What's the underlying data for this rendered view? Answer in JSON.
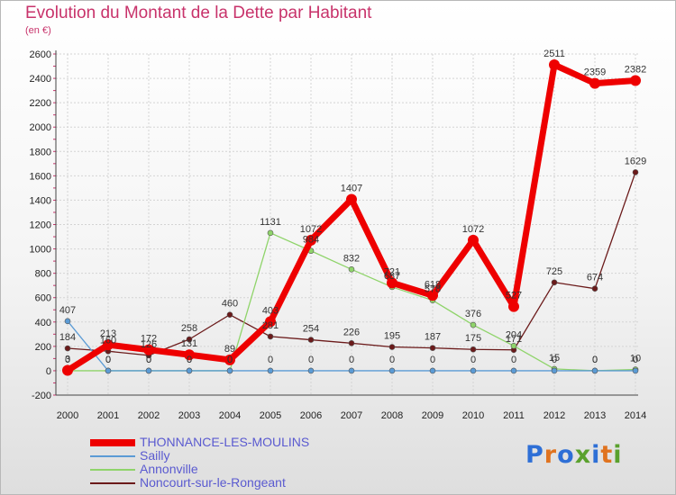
{
  "title": "Evolution du Montant de la Dette par Habitant",
  "subtitle": "(en €)",
  "brand": "Proxiti",
  "brand_colors": [
    "#2e6fd6",
    "#e0731f",
    "#2e6fd6",
    "#5aa12d",
    "#2e6fd6",
    "#e0731f",
    "#5aa12d"
  ],
  "chart_data": {
    "type": "line",
    "x": [
      "2000",
      "2001",
      "2002",
      "2003",
      "2004",
      "2005",
      "2006",
      "2007",
      "2008",
      "2009",
      "2010",
      "2011",
      "2012",
      "2013",
      "2014"
    ],
    "ylim": [
      -200,
      2600
    ],
    "yticks": [
      -200,
      0,
      200,
      400,
      600,
      800,
      1000,
      1200,
      1400,
      1600,
      1800,
      2000,
      2200,
      2400,
      2600
    ],
    "grid": true,
    "legend_position": "bottom-left",
    "series": [
      {
        "name": "Noncourt-sur-le-Rongeant",
        "color": "#6b1a1a",
        "values": [
          184,
          160,
          126,
          258,
          460,
          281,
          254,
          226,
          195,
          187,
          175,
          171,
          725,
          674,
          1629
        ],
        "labels": [
          "184",
          "160",
          "126",
          "258",
          "460",
          "281",
          "254",
          "226",
          "195",
          "187",
          "175",
          "171",
          "725",
          "674",
          "1629"
        ]
      },
      {
        "name": "Annonville",
        "color": "#8fd46a",
        "values": [
          0,
          0,
          0,
          0,
          0,
          1131,
          984,
          832,
          687,
          578,
          376,
          204,
          15,
          0,
          10
        ],
        "labels": [
          "0",
          "0",
          "0",
          "0",
          "0",
          "1131",
          "984",
          "832",
          "687",
          "578",
          "376",
          "204",
          "15",
          "0",
          "10"
        ]
      },
      {
        "name": "Sailly",
        "color": "#5b9bd5",
        "values": [
          407,
          0,
          0,
          0,
          0,
          0,
          0,
          0,
          0,
          0,
          0,
          0,
          0,
          0,
          0
        ],
        "labels": [
          "407",
          "0",
          "0",
          "0",
          "0",
          "0",
          "0",
          "0",
          "0",
          "0",
          "0",
          "0",
          "0",
          "0",
          "0"
        ]
      },
      {
        "name": "THONNANCE-LES-MOULINS",
        "color": "#ee0000",
        "values": [
          3,
          213,
          172,
          131,
          89,
          403,
          1072,
          1407,
          721,
          618,
          1072,
          527,
          2511,
          2359,
          2382
        ],
        "labels": [
          "3",
          "213",
          "172",
          "131",
          "89",
          "403",
          "1072",
          "1407",
          "721",
          "618",
          "1072",
          "527",
          "2511",
          "2359",
          "2382"
        ]
      }
    ],
    "legend": [
      "THONNANCE-LES-MOULINS",
      "Sailly",
      "Annonville",
      "Noncourt-sur-le-Rongeant"
    ]
  }
}
